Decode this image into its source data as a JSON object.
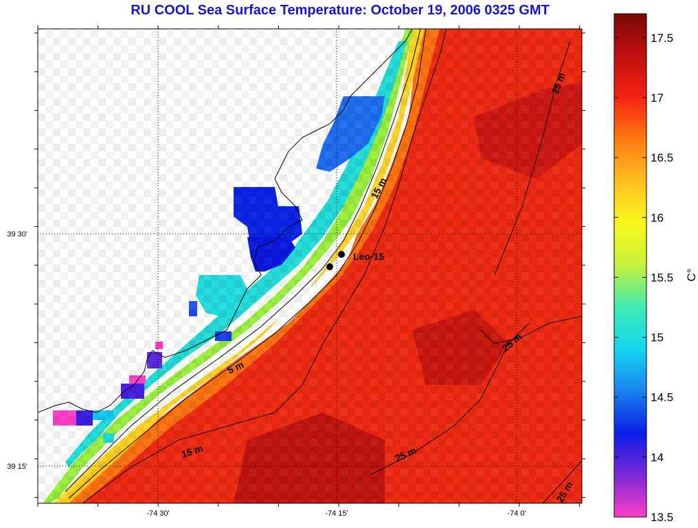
{
  "title": "RU COOL  Sea Surface Temperature:  October 19, 2006 0325 GMT",
  "map": {
    "lon_ticks": [
      {
        "value": -74.5,
        "label": "-74 30'"
      },
      {
        "value": -74.25,
        "label": "-74 15'"
      },
      {
        "value": -74.0,
        "label": "-74 0'"
      }
    ],
    "lat_ticks": [
      {
        "value": 39.5,
        "label": "39 30'"
      },
      {
        "value": 39.25,
        "label": "39 15'"
      }
    ],
    "station": {
      "name": "Leo-15"
    },
    "contour_labels": [
      {
        "text": "5 m"
      },
      {
        "text": "15 m"
      },
      {
        "text": "15 m"
      },
      {
        "text": "25 m"
      },
      {
        "text": "25 m"
      },
      {
        "text": "25 m"
      },
      {
        "text": "25 m"
      }
    ]
  },
  "colorbar": {
    "unit": "C°",
    "min": 13.5,
    "max": 17.7,
    "ticks": [
      "13.5",
      "14",
      "14.5",
      "15",
      "15.5",
      "16",
      "16.5",
      "17",
      "17.5"
    ]
  },
  "colors": {
    "title": "#1616c8",
    "land": "#ffffff",
    "scale": [
      "#ff3ec8",
      "#7a2ad8",
      "#0a1ee6",
      "#1a82ee",
      "#12d6f0",
      "#3eeab0",
      "#c6f03a",
      "#f8f81e",
      "#ffc020",
      "#ff7a10",
      "#f42412",
      "#c01010",
      "#7a0808"
    ]
  }
}
